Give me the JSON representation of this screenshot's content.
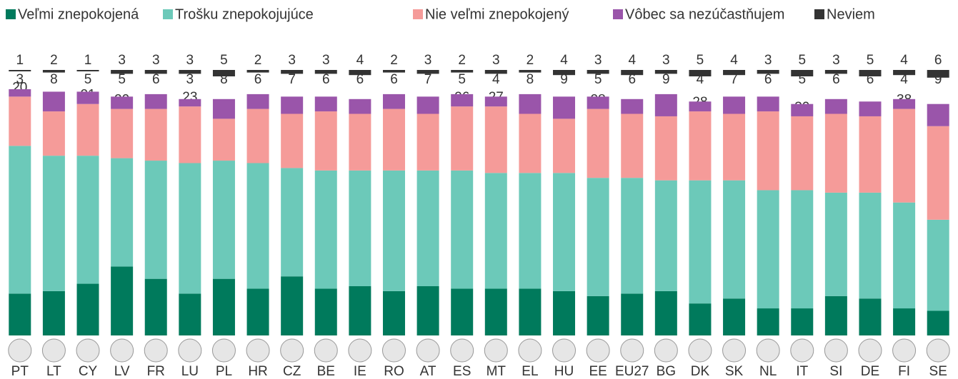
{
  "chart_data": {
    "type": "stacked_bar",
    "categories": [
      "PT",
      "LT",
      "CY",
      "LV",
      "FR",
      "LU",
      "PL",
      "HR",
      "CZ",
      "BE",
      "IE",
      "RO",
      "AT",
      "ES",
      "MT",
      "EL",
      "HU",
      "EE",
      "EU27",
      "BG",
      "DK",
      "SK",
      "NL",
      "IT",
      "SI",
      "DE",
      "FI",
      "SE"
    ],
    "series": [
      {
        "name": "Veľmi znepokojená",
        "color": "#007a5c",
        "values": [
          17,
          18,
          21,
          28,
          23,
          17,
          23,
          19,
          24,
          19,
          20,
          18,
          20,
          19,
          19,
          19,
          18,
          16,
          17,
          18,
          13,
          15,
          11,
          11,
          16,
          15,
          11,
          10
        ]
      },
      {
        "name": "Trošku znepokojujúce",
        "color": "#6cc9b9",
        "values": [
          60,
          55,
          52,
          44,
          48,
          53,
          48,
          51,
          44,
          48,
          47,
          49,
          47,
          48,
          47,
          47,
          48,
          48,
          47,
          45,
          50,
          48,
          48,
          48,
          42,
          43,
          43,
          37
        ]
      },
      {
        "name": "Nie veľmi znepokojený",
        "color": "#f59b99",
        "values": [
          20,
          18,
          21,
          20,
          21,
          23,
          17,
          22,
          22,
          24,
          23,
          25,
          23,
          26,
          27,
          24,
          22,
          28,
          26,
          26,
          28,
          27,
          32,
          30,
          32,
          31,
          38,
          38
        ]
      },
      {
        "name": "Vôbec sa nezúčastňujem",
        "color": "#9a55aa",
        "values": [
          3,
          8,
          5,
          5,
          6,
          3,
          8,
          6,
          7,
          6,
          6,
          6,
          7,
          5,
          4,
          8,
          9,
          5,
          6,
          9,
          4,
          7,
          6,
          5,
          6,
          6,
          4,
          9
        ]
      },
      {
        "name": "Neviem",
        "color": "#333333",
        "values": [
          1,
          2,
          1,
          3,
          3,
          3,
          5,
          2,
          3,
          3,
          4,
          2,
          3,
          2,
          3,
          2,
          4,
          3,
          4,
          3,
          5,
          4,
          3,
          5,
          3,
          5,
          4,
          6
        ]
      }
    ]
  }
}
